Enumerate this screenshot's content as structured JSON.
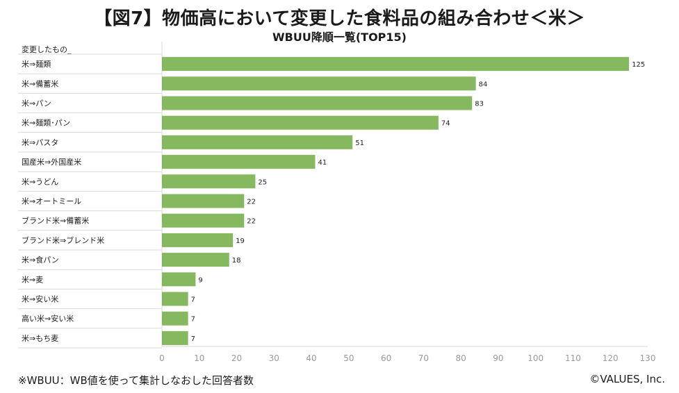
{
  "title": "【図7】物価高において変更した食料品の組み合わせ＜米＞",
  "subtitle": "WBUU降順一覧(TOP15)",
  "category_header": "変更したもの_",
  "footnote": "※WBUU：WB値を使って集計しなおした回答者数",
  "copyright": "©VALUES, Inc.",
  "colors": {
    "bar": "#86b85f",
    "grid": "#d9d9d9",
    "row_divider": "#d9d9d9"
  },
  "chart_data": {
    "type": "bar",
    "orientation": "horizontal",
    "title": "【図7】物価高において変更した食料品の組み合わせ＜米＞",
    "subtitle": "WBUU降順一覧(TOP15)",
    "xlabel": "",
    "ylabel": "変更したもの_",
    "xlim": [
      0,
      130
    ],
    "xticks": [
      0,
      10,
      20,
      30,
      40,
      50,
      60,
      70,
      80,
      90,
      100,
      110,
      120,
      130
    ],
    "grid": false,
    "legend": "none",
    "categories": [
      "米⇒麺類",
      "米⇒備蓄米",
      "米⇒パン",
      "米⇒麺類･パン",
      "米⇒パスタ",
      "国産米⇒外国産米",
      "米⇒うどん",
      "米⇒オートミール",
      "ブランド米⇒備蓄米",
      "ブランド米⇒ブレンド米",
      "米⇒食パン",
      "米⇒麦",
      "米⇒安い米",
      "高い米⇒安い米",
      "米⇒もち麦"
    ],
    "values": [
      125,
      84,
      83,
      74,
      51,
      41,
      25,
      22,
      22,
      19,
      18,
      9,
      7,
      7,
      7
    ]
  }
}
